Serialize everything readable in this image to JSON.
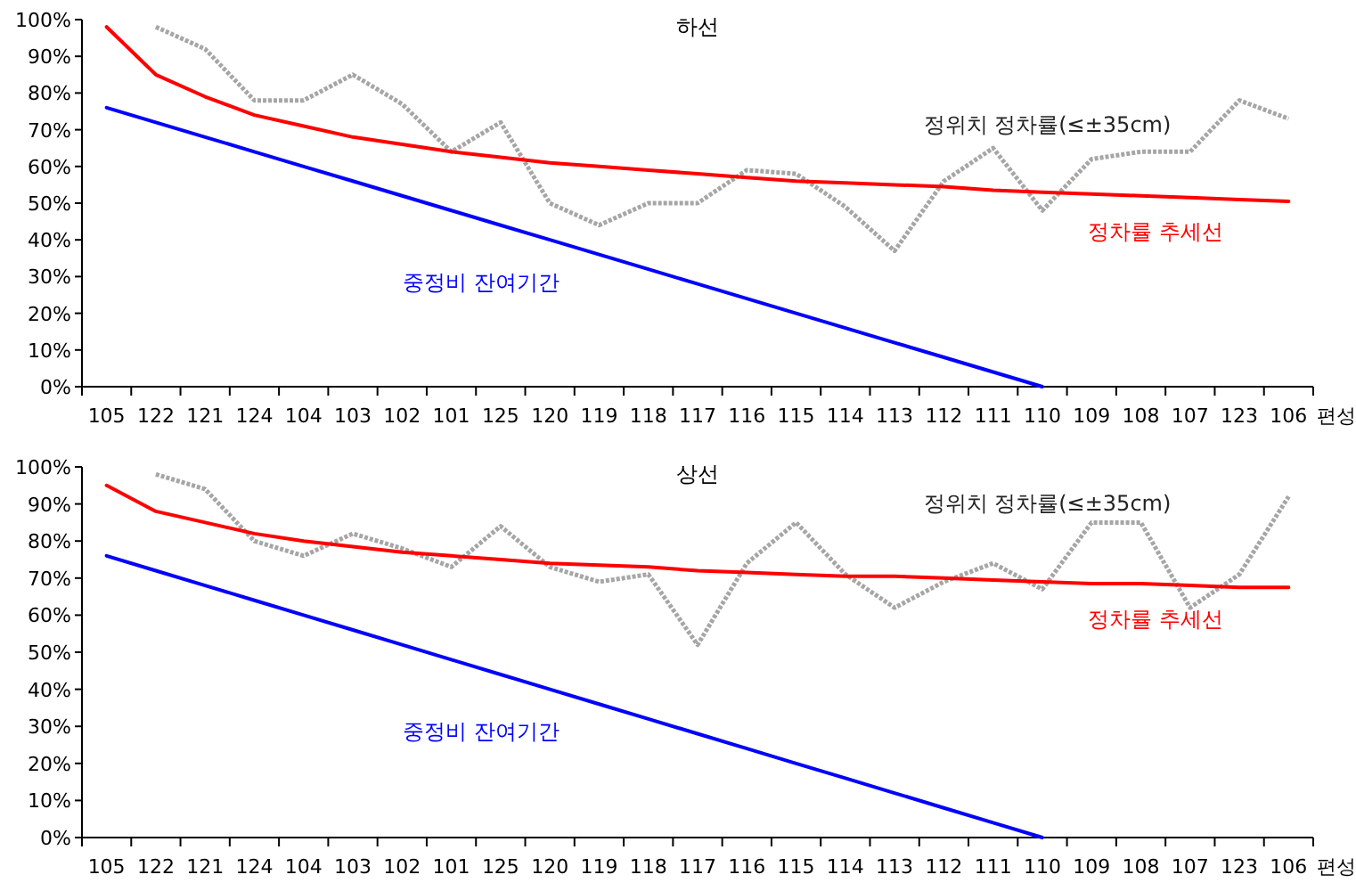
{
  "chart_data": [
    {
      "type": "line",
      "title": "하선",
      "xlabel": "편성",
      "categories": [
        "105",
        "122",
        "121",
        "124",
        "104",
        "103",
        "102",
        "101",
        "125",
        "120",
        "119",
        "118",
        "117",
        "116",
        "115",
        "114",
        "113",
        "112",
        "111",
        "110",
        "109",
        "108",
        "107",
        "123",
        "106"
      ],
      "ylim": [
        0,
        100
      ],
      "yticks": [
        {
          "value": 0,
          "label": "0%"
        },
        {
          "value": 10,
          "label": "10%"
        },
        {
          "value": 20,
          "label": "20%"
        },
        {
          "value": 30,
          "label": "30%"
        },
        {
          "value": 40,
          "label": "40%"
        },
        {
          "value": 50,
          "label": "50%"
        },
        {
          "value": 60,
          "label": "60%"
        },
        {
          "value": 70,
          "label": "70%"
        },
        {
          "value": 80,
          "label": "80%"
        },
        {
          "value": 90,
          "label": "90%"
        },
        {
          "value": 100,
          "label": "100%"
        }
      ],
      "grid": false,
      "series": [
        {
          "name": "정위치 정차률(≤±35cm)",
          "color": "#a6a6a6",
          "line_style": "dotted",
          "values": [
            null,
            98,
            92,
            78,
            78,
            85,
            77,
            64,
            72,
            50,
            44,
            50,
            50,
            59,
            58,
            49,
            37,
            56,
            65,
            48,
            62,
            64,
            64,
            78,
            73
          ]
        },
        {
          "name": "정차률 추세선",
          "color": "#ff0000",
          "line_style": "solid",
          "values": [
            98,
            85,
            79,
            74,
            71,
            68,
            66,
            64,
            62.5,
            61,
            60,
            59,
            58,
            57,
            56,
            55.5,
            55,
            54.5,
            53.5,
            53,
            52.5,
            52,
            51.5,
            51,
            50.5
          ]
        },
        {
          "name": "중정비 잔여기간",
          "color": "#0000ff",
          "line_style": "solid",
          "values": [
            76,
            72,
            68,
            64,
            60,
            56,
            52,
            48,
            44,
            40,
            36,
            32,
            28,
            24,
            20,
            16,
            12,
            8,
            4,
            0,
            null,
            null,
            null,
            null,
            null
          ]
        }
      ]
    },
    {
      "type": "line",
      "title": "상선",
      "xlabel": "편성",
      "categories": [
        "105",
        "122",
        "121",
        "124",
        "104",
        "103",
        "102",
        "101",
        "125",
        "120",
        "119",
        "118",
        "117",
        "116",
        "115",
        "114",
        "113",
        "112",
        "111",
        "110",
        "109",
        "108",
        "107",
        "123",
        "106"
      ],
      "ylim": [
        0,
        100
      ],
      "yticks": [
        {
          "value": 0,
          "label": "0%"
        },
        {
          "value": 10,
          "label": "10%"
        },
        {
          "value": 20,
          "label": "20%"
        },
        {
          "value": 30,
          "label": "30%"
        },
        {
          "value": 40,
          "label": "40%"
        },
        {
          "value": 50,
          "label": "50%"
        },
        {
          "value": 60,
          "label": "60%"
        },
        {
          "value": 70,
          "label": "70%"
        },
        {
          "value": 80,
          "label": "80%"
        },
        {
          "value": 90,
          "label": "90%"
        },
        {
          "value": 100,
          "label": "100%"
        }
      ],
      "grid": false,
      "series": [
        {
          "name": "정위치 정차률(≤±35cm)",
          "color": "#a6a6a6",
          "line_style": "dotted",
          "values": [
            null,
            98,
            94,
            80,
            76,
            82,
            78,
            73,
            84,
            73,
            69,
            71,
            52,
            74,
            85,
            71,
            62,
            69,
            74,
            67,
            85,
            85,
            62,
            71,
            92
          ]
        },
        {
          "name": "정차률 추세선",
          "color": "#ff0000",
          "line_style": "solid",
          "values": [
            95,
            88,
            85,
            82,
            80,
            78.5,
            77,
            76,
            75,
            74,
            73.5,
            73,
            72,
            71.5,
            71,
            70.5,
            70.5,
            70,
            69.5,
            69,
            68.5,
            68.5,
            68,
            67.5,
            67.5
          ]
        },
        {
          "name": "중정비 잔여기간",
          "color": "#0000ff",
          "line_style": "solid",
          "values": [
            76,
            72,
            68,
            64,
            60,
            56,
            52,
            48,
            44,
            40,
            36,
            32,
            28,
            24,
            20,
            16,
            12,
            8,
            4,
            0,
            null,
            null,
            null,
            null,
            null
          ]
        }
      ]
    }
  ]
}
